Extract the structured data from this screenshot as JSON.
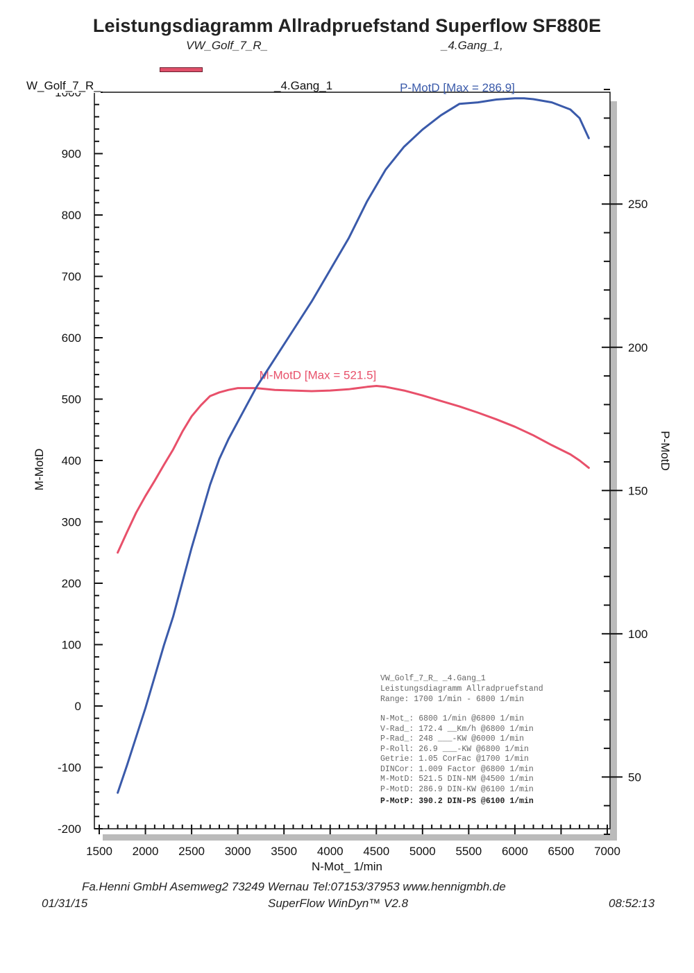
{
  "header": {
    "title": "Leistungsdiagramm Allradpruefstand Superflow SF880E",
    "vehicle": "VW_Golf_7_R_",
    "gear": "_4.Gang_1,"
  },
  "frame": {
    "vehicle_label": "W_Golf_7_R_",
    "gear_label": "_4.Gang_1"
  },
  "chart_data": {
    "type": "line",
    "xlabel": "N-Mot_ 1/min",
    "ylabel_left": "M-MotD",
    "ylabel_right": "P-MotD",
    "xlim": [
      1500,
      7000
    ],
    "ylim_left": [
      -200,
      1000
    ],
    "ylim_right": [
      30,
      290
    ],
    "x_ticks": [
      1500,
      2000,
      2500,
      3000,
      3500,
      4000,
      4500,
      5000,
      5500,
      6000,
      6500,
      7000
    ],
    "y_ticks_left": [
      -200,
      -100,
      0,
      100,
      200,
      300,
      400,
      500,
      600,
      700,
      800,
      900,
      1000
    ],
    "y_ticks_right": [
      50,
      100,
      150,
      200,
      250
    ],
    "grid": false,
    "series": [
      {
        "name": "M-MotD",
        "axis": "left",
        "color": "#e8506a",
        "annotation": "M-MotD [Max = 521.5]",
        "x": [
          1700,
          1800,
          1900,
          2000,
          2100,
          2200,
          2300,
          2400,
          2500,
          2600,
          2700,
          2800,
          2900,
          3000,
          3200,
          3400,
          3600,
          3800,
          4000,
          4200,
          4400,
          4500,
          4600,
          4800,
          5000,
          5200,
          5400,
          5600,
          5800,
          6000,
          6200,
          6400,
          6600,
          6700,
          6800
        ],
        "values": [
          250,
          283,
          315,
          342,
          367,
          393,
          418,
          447,
          472,
          490,
          505,
          511,
          515,
          518,
          518,
          515,
          514,
          513,
          514,
          516,
          520,
          521.5,
          520,
          514,
          506,
          497,
          488,
          478,
          467,
          455,
          441,
          425,
          410,
          400,
          388
        ]
      },
      {
        "name": "P-MotD",
        "axis": "right",
        "color": "#3a5aaa",
        "annotation": "P-MotD [Max = 286.9]",
        "x": [
          1700,
          1800,
          1900,
          2000,
          2100,
          2200,
          2300,
          2400,
          2500,
          2600,
          2700,
          2800,
          2900,
          3000,
          3200,
          3400,
          3600,
          3800,
          4000,
          4200,
          4400,
          4600,
          4800,
          5000,
          5200,
          5400,
          5600,
          5800,
          6000,
          6100,
          6200,
          6400,
          6600,
          6700,
          6800
        ],
        "values": [
          44.5,
          54,
          64,
          74,
          85,
          96,
          106,
          118,
          130,
          141,
          152,
          161,
          168,
          174,
          186,
          196,
          206,
          216,
          227,
          238,
          251,
          262,
          270,
          276,
          281,
          285,
          285.5,
          286.5,
          286.9,
          286.9,
          286.6,
          285.5,
          283,
          280,
          273
        ]
      }
    ]
  },
  "info_box": {
    "header_lines": [
      "VW_Golf_7_R_                    _4.Gang_1",
      "Leistungsdiagramm Allradpruefstand",
      "Range: 1700 1/min - 6800 1/min"
    ],
    "rows": [
      "N-Mot_:   6800 1/min  @6800 1/min",
      "V-Rad_:  172.4  __Km/h @6800 1/min",
      "P-Rad_:    248  ___-KW @6000 1/min",
      "P-Roll:   26.9  ___-KW @6800 1/min",
      "Getrie:   1.05 CorFac @1700 1/min",
      "DINCor:  1.009 Factor @6800 1/min",
      "M-MotD:  521.5 DIN-NM @4500 1/min",
      "P-MotD:  286.9 DIN-KW @6100 1/min"
    ],
    "highlight": "P-MotP:  390.2 DIN-PS @6100 1/min"
  },
  "footer": {
    "company": "Fa.Henni GmbH   Asemweg2   73249 Wernau   Tel:07153/37953   www.hennigmbh.de",
    "date": "01/31/15",
    "software": "SuperFlow WinDyn™ V2.8",
    "time": "08:52:13"
  }
}
